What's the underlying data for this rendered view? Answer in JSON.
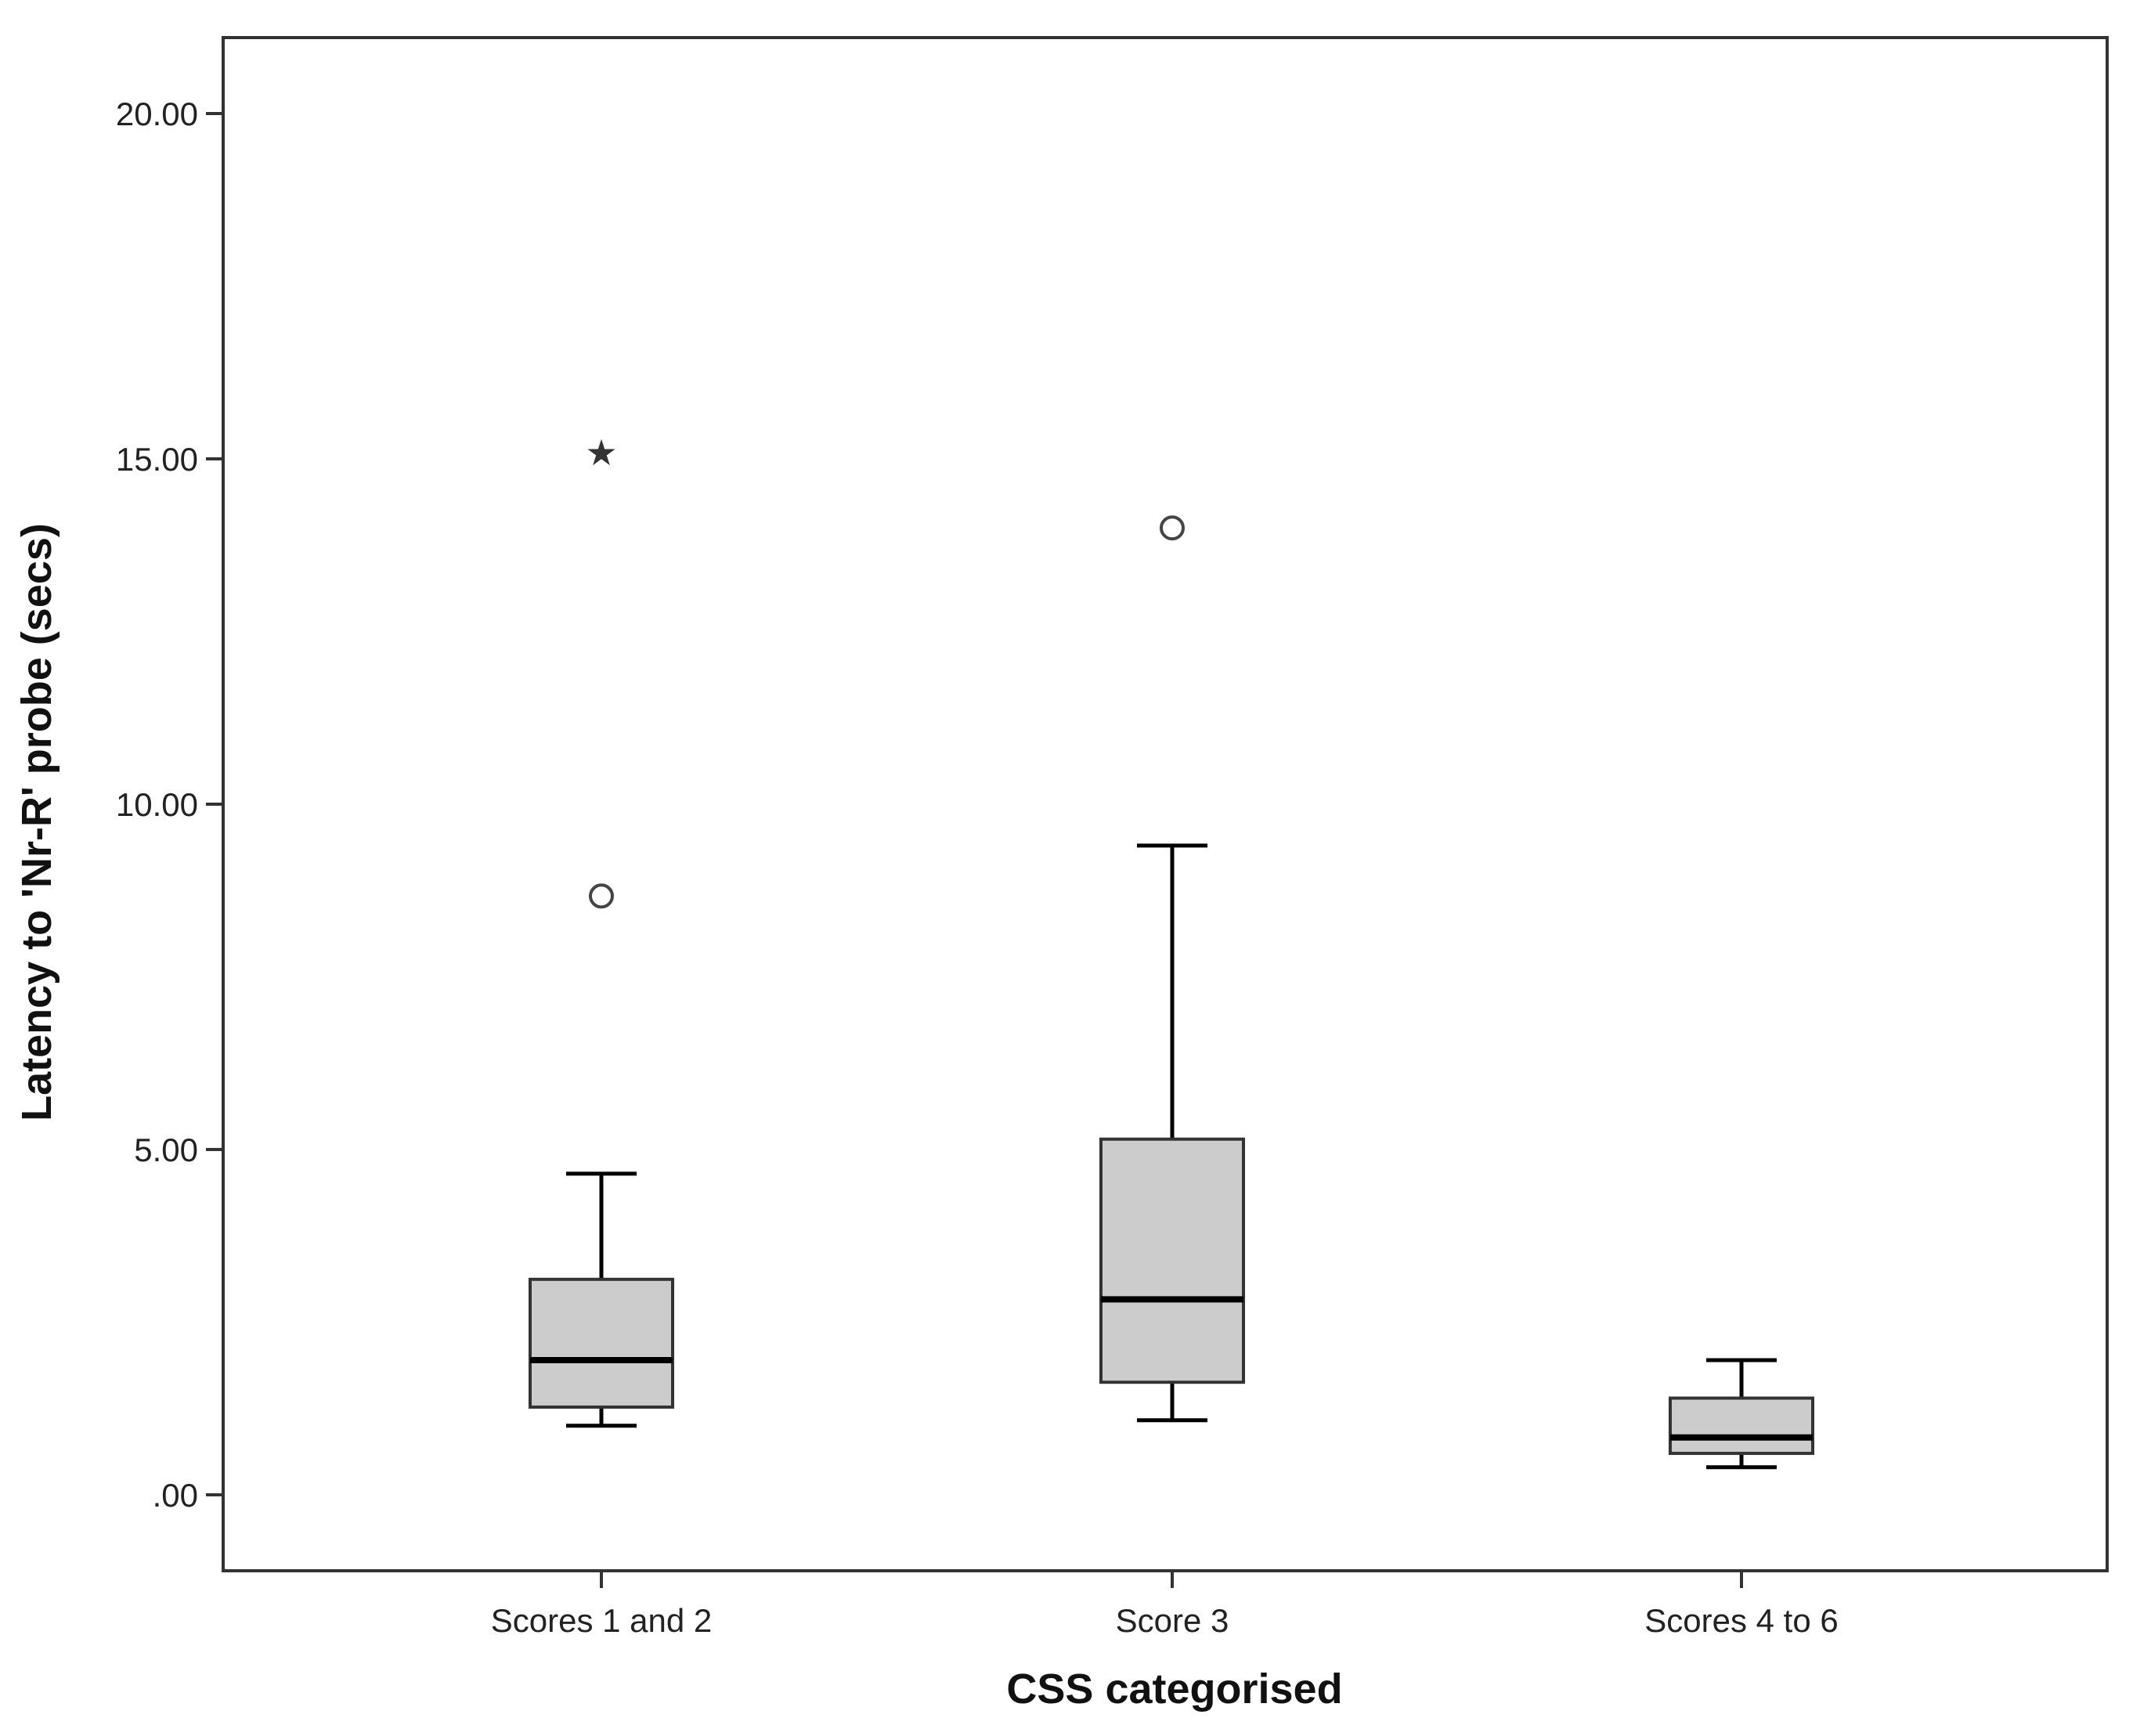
{
  "chart_data": {
    "type": "boxplot",
    "title": "",
    "xlabel": "CSS categorised",
    "ylabel": "Latency to 'Nr-R' probe (secs)",
    "ylim": [
      -1.1,
      21.1
    ],
    "yticks": [
      0,
      5,
      10,
      15,
      20
    ],
    "ytick_labels": [
      ".00",
      "5.00",
      "10.00",
      "15.00",
      "20.00"
    ],
    "grid": false,
    "box_color": "#cccccc",
    "line_color": "#000000",
    "categories": [
      "Scores 1 and 2",
      "Score 3",
      "Scores 4 to 6"
    ],
    "boxes": [
      {
        "category": "Scores 1 and 2",
        "whisker_low": 1.0,
        "q1": 1.27,
        "median": 1.95,
        "q3": 3.12,
        "whisker_high": 4.65,
        "outliers": [
          8.67
        ],
        "extremes": [
          15.1
        ]
      },
      {
        "category": "Score 3",
        "whisker_low": 1.08,
        "q1": 1.63,
        "median": 2.83,
        "q3": 5.15,
        "whisker_high": 9.4,
        "outliers": [
          14.0
        ],
        "extremes": []
      },
      {
        "category": "Scores 4 to 6",
        "whisker_low": 0.4,
        "q1": 0.6,
        "median": 0.83,
        "q3": 1.4,
        "whisker_high": 1.95,
        "outliers": [],
        "extremes": []
      }
    ]
  }
}
